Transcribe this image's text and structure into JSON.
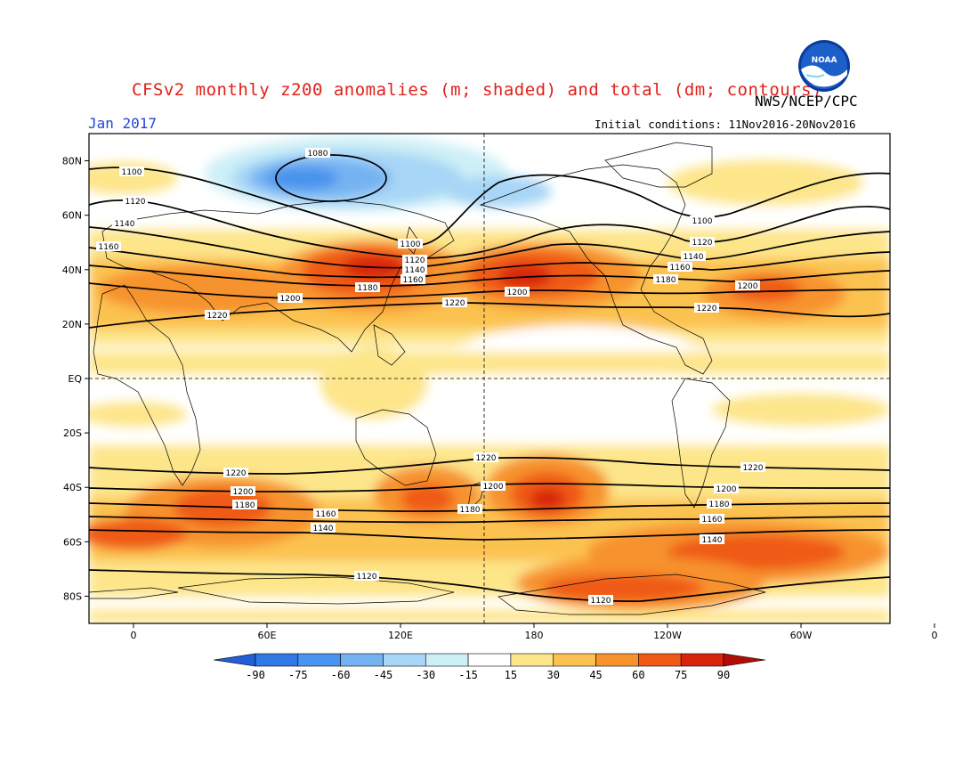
{
  "header": {
    "title": "CFSv2 monthly z200 anomalies (m; shaded) and total (dm; contours)",
    "agency": "NWS/NCEP/CPC",
    "month": "Jan 2017",
    "initial_conditions": "Initial conditions: 11Nov2016-20Nov2016"
  },
  "logo": {
    "icon": "noaa-logo-icon",
    "text": "NOAA"
  },
  "map": {
    "lat_range": [
      -90,
      90
    ],
    "lon_range": [
      -20,
      340
    ],
    "lat_labels": [
      "80N",
      "60N",
      "40N",
      "20N",
      "EQ",
      "20S",
      "40S",
      "60S",
      "80S"
    ],
    "lat_values": [
      80,
      60,
      40,
      20,
      0,
      -20,
      -40,
      -60,
      -80
    ],
    "lon_labels": [
      "0",
      "60E",
      "120E",
      "180",
      "120W",
      "60W",
      "0"
    ],
    "lon_values": [
      0,
      60,
      120,
      180,
      240,
      300,
      360
    ],
    "contours": [
      {
        "value": 1080,
        "label": "1080"
      },
      {
        "value": 1100,
        "label": "1100"
      },
      {
        "value": 1120,
        "label": "1120"
      },
      {
        "value": 1140,
        "label": "1140"
      },
      {
        "value": 1160,
        "label": "1160"
      },
      {
        "value": 1180,
        "label": "1180"
      },
      {
        "value": 1200,
        "label": "1200"
      },
      {
        "value": 1220,
        "label": "1220"
      }
    ]
  },
  "colorbar": {
    "levels": [
      "-90",
      "-75",
      "-60",
      "-45",
      "-30",
      "-15",
      "15",
      "30",
      "45",
      "60",
      "75",
      "90"
    ],
    "colors": [
      "#1f5fd8",
      "#2f78e6",
      "#4a93ee",
      "#74b2f2",
      "#a8d6f6",
      "#cdf0f7",
      "#ffffff",
      "#fde58a",
      "#fcc250",
      "#f7932d",
      "#ef5a18",
      "#d8250e",
      "#b00d08"
    ]
  }
}
